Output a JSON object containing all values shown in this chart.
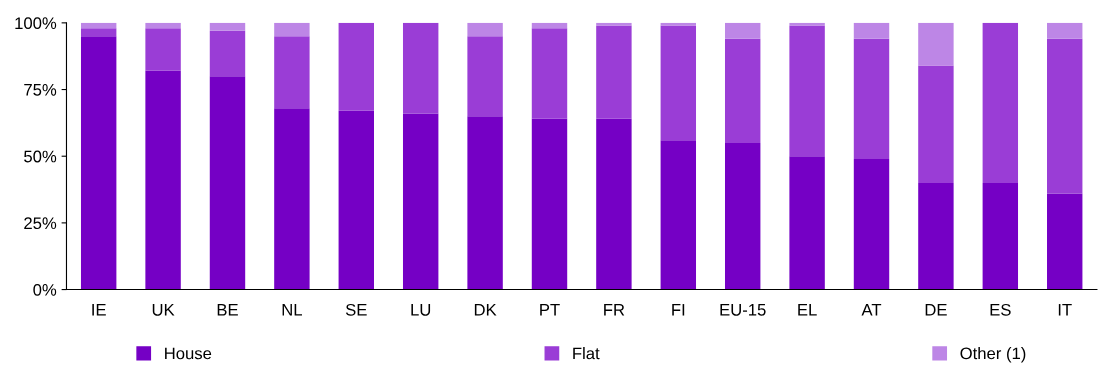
{
  "chart_data": {
    "type": "bar",
    "stacked": true,
    "categories": [
      "IE",
      "UK",
      "BE",
      "NL",
      "SE",
      "LU",
      "DK",
      "PT",
      "FR",
      "FI",
      "EU-15",
      "EL",
      "AT",
      "DE",
      "ES",
      "IT"
    ],
    "series": [
      {
        "name": "House",
        "color": "#7500c5",
        "values": [
          95,
          82,
          80,
          68,
          67,
          66,
          65,
          64,
          64,
          56,
          55,
          50,
          49,
          40,
          40,
          36
        ]
      },
      {
        "name": "Flat",
        "color": "#9a3dd6",
        "values": [
          3,
          16,
          17,
          27,
          33,
          34,
          30,
          34,
          35,
          43,
          39,
          49,
          45,
          44,
          60,
          58
        ]
      },
      {
        "name": "Other (1)",
        "color": "#bd86e6",
        "values": [
          2,
          2,
          3,
          5,
          0,
          0,
          5,
          2,
          1,
          1,
          6,
          1,
          6,
          16,
          0,
          6
        ]
      }
    ],
    "ylim": [
      0,
      100
    ],
    "yticks": [
      {
        "value": 0,
        "label": "0%"
      },
      {
        "value": 25,
        "label": "25%"
      },
      {
        "value": 50,
        "label": "50%"
      },
      {
        "value": 75,
        "label": "75%"
      },
      {
        "value": 100,
        "label": "100%"
      }
    ],
    "grid": false,
    "legend": "bottom"
  }
}
